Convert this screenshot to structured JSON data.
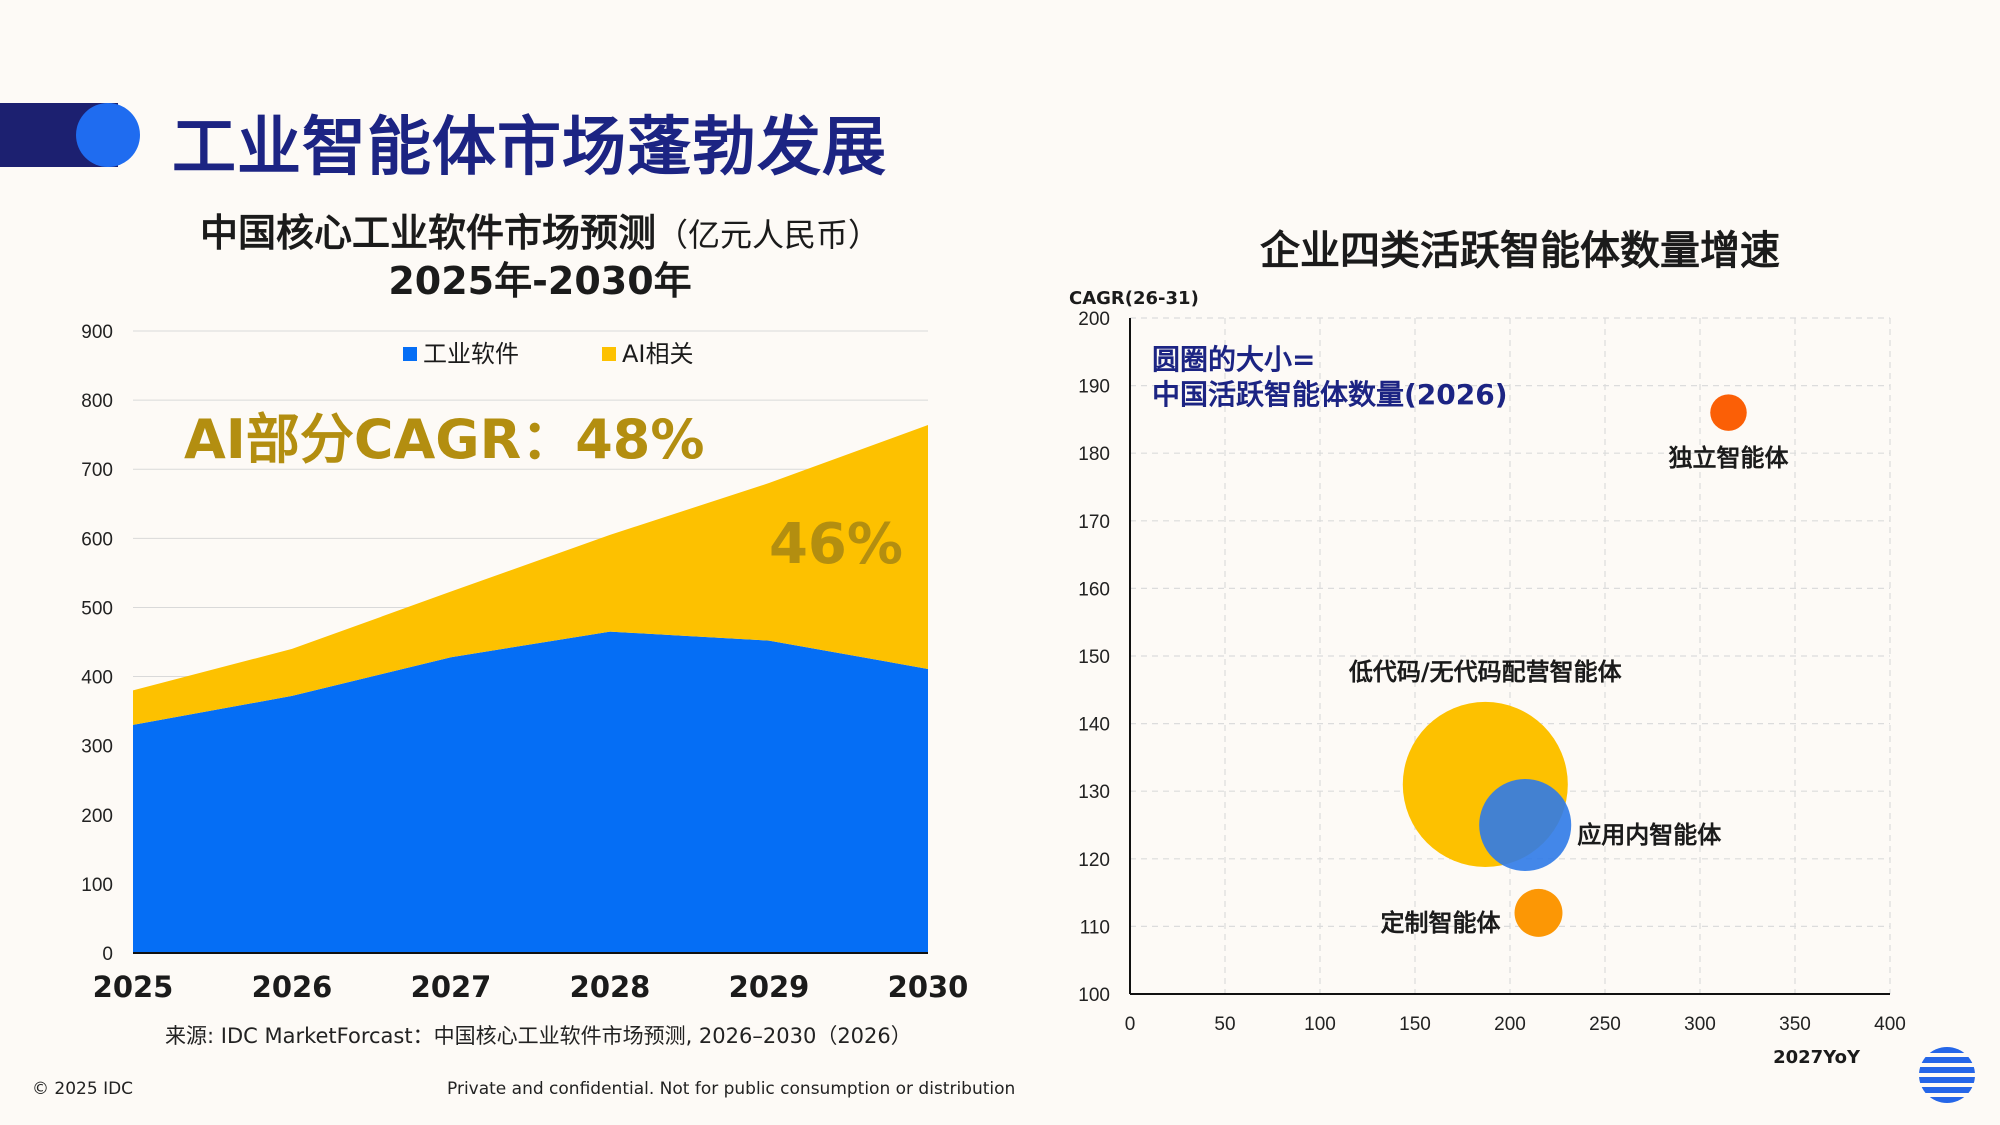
{
  "slide": {
    "title": "工业智能体市场蓬勃发展",
    "copyright": "© 2025 IDC",
    "confidential": "Private and confidential. Not for public consumption or distribution",
    "source": "来源: IDC MarketForcast：中国核心工业软件市场预测, 2026–2030（2026）"
  },
  "colors": {
    "title_navy": "#1c2483",
    "accent_dark": "#1c2070",
    "accent_blue": "#1f6cf0",
    "industrial_blue": "#056ef5",
    "ai_yellow": "#fdc100",
    "gold_text": "#b38e10",
    "orange_red": "#fb5f06",
    "orange": "#fc9705",
    "bubble_blue": "#2f7ae8"
  },
  "chart_data": [
    {
      "type": "area",
      "stacked": true,
      "title": "中国核心工业软件市场预测",
      "title_unit": "（亿元人民币）",
      "subtitle": "2025年-2030年",
      "x": [
        "2025",
        "2026",
        "2027",
        "2028",
        "2029",
        "2030"
      ],
      "ylim": [
        0,
        900
      ],
      "yticks": [
        "0",
        "100",
        "200",
        "300",
        "400",
        "500",
        "600",
        "700",
        "800",
        "900"
      ],
      "grid": true,
      "legend_position": "top",
      "series": [
        {
          "name": "工业软件",
          "color": "#056ef5",
          "values": [
            330,
            372,
            428,
            465,
            452,
            411
          ]
        },
        {
          "name": "AI相关",
          "color": "#fdc100",
          "values": [
            50,
            68,
            95,
            140,
            228,
            353
          ]
        }
      ],
      "annotations": {
        "ai_cagr": "AI部分CAGR：48%",
        "share_2030": "46%"
      }
    },
    {
      "type": "scatter",
      "title": "企业四类活跃智能体数量增速",
      "xlabel": "2027YoY",
      "ylabel": "CAGR(26-31)",
      "xlim": [
        0,
        400
      ],
      "ylim": [
        100,
        200
      ],
      "xticks": [
        "0",
        "50",
        "100",
        "150",
        "200",
        "250",
        "300",
        "350",
        "400"
      ],
      "yticks": [
        "100",
        "110",
        "120",
        "130",
        "140",
        "150",
        "160",
        "170",
        "180",
        "190",
        "200"
      ],
      "grid": true,
      "note_line1": "圆圈的大小=",
      "note_line2": "中国活跃智能体数量(2026)",
      "points": [
        {
          "label": "独立智能体",
          "x": 315,
          "y": 186,
          "size": 2.2,
          "color": "#fb5f06",
          "label_pos": "below"
        },
        {
          "label": "低代码/无代码配营智能体",
          "x": 187,
          "y": 131,
          "size": 45,
          "color": "#fdc100",
          "label_pos": "above"
        },
        {
          "label": "应用内智能体",
          "x": 208,
          "y": 125,
          "size": 14,
          "color": "#2f7ae8",
          "label_pos": "right"
        },
        {
          "label": "定制智能体",
          "x": 215,
          "y": 112,
          "size": 3.8,
          "color": "#fc9705",
          "label_pos": "left"
        }
      ]
    }
  ]
}
